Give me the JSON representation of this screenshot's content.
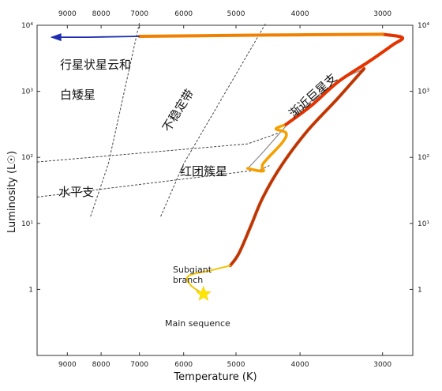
{
  "chart_data": {
    "type": "line",
    "title": "",
    "xlabel": "Temperature (K)",
    "ylabel": "Luminosity (L☉)",
    "x_scale": "reversed-log",
    "y_scale": "log",
    "xlim": [
      10000,
      2700
    ],
    "ylim": [
      0.1,
      10000
    ],
    "x_ticks": [
      9000,
      8000,
      7000,
      6000,
      5000,
      4000,
      3000
    ],
    "y_ticks": [
      {
        "value": 1,
        "label": "1"
      },
      {
        "value": 10,
        "label": "10¹"
      },
      {
        "value": 100,
        "label": "10²"
      },
      {
        "value": 1000,
        "label": "10³"
      },
      {
        "value": 10000,
        "label": "10⁴"
      }
    ],
    "annotations": [
      {
        "text": "行星状星云和",
        "kind": "zh"
      },
      {
        "text": "白矮星",
        "kind": "zh"
      },
      {
        "text": "不稳定带",
        "kind": "zh",
        "rotated": true
      },
      {
        "text": "渐近巨星支",
        "kind": "zh",
        "rotated": true
      },
      {
        "text": "红团簇星",
        "kind": "zh"
      },
      {
        "text": "水平支",
        "kind": "zh"
      },
      {
        "text": "Subgiant",
        "kind": "en"
      },
      {
        "text": "branch",
        "kind": "en"
      },
      {
        "text": "Main sequence",
        "kind": "en"
      }
    ],
    "main_sequence_point": {
      "T": 5600,
      "L": 0.85
    },
    "track_colors": {
      "subgiant": "#f2c200",
      "rgb": "#e33300",
      "agb": "#f08000",
      "post_agb": "#1d2fb0",
      "grey": "#888888",
      "star": "#ffe600"
    },
    "track_segments": [
      {
        "name": "subgiant",
        "points": [
          [
            5600,
            0.85
          ],
          [
            5850,
            1.15
          ],
          [
            5900,
            1.6
          ],
          [
            5450,
            1.95
          ],
          [
            5100,
            2.3
          ]
        ]
      },
      {
        "name": "red-giant-branch",
        "points": [
          [
            5100,
            2.3
          ],
          [
            4950,
            3.5
          ],
          [
            4750,
            9
          ],
          [
            4550,
            25
          ],
          [
            4250,
            80
          ],
          [
            3900,
            250
          ],
          [
            3500,
            800
          ],
          [
            3200,
            2200
          ]
        ]
      },
      {
        "name": "helium-flash",
        "points": [
          [
            3200,
            2200
          ],
          [
            3550,
            1300
          ],
          [
            4000,
            500
          ],
          [
            4550,
            120
          ],
          [
            4800,
            68
          ]
        ]
      },
      {
        "name": "red-clump",
        "points": [
          [
            4800,
            68
          ],
          [
            4550,
            62
          ],
          [
            4550,
            80
          ],
          [
            4250,
            170
          ],
          [
            4200,
            235
          ],
          [
            4350,
            270
          ],
          [
            4200,
            315
          ]
        ]
      },
      {
        "name": "asymptotic-giant-branch",
        "points": [
          [
            4200,
            315
          ],
          [
            3850,
            600
          ],
          [
            3500,
            1400
          ],
          [
            3150,
            2800
          ],
          [
            2900,
            5000
          ],
          [
            2800,
            6500
          ],
          [
            3000,
            7300
          ]
        ]
      },
      {
        "name": "post-agb",
        "points": [
          [
            3000,
            7300
          ],
          [
            4500,
            7100
          ],
          [
            7000,
            6800
          ]
        ]
      },
      {
        "name": "to-white-dwarf",
        "points": [
          [
            7000,
            6800
          ],
          [
            8400,
            6600
          ],
          [
            9500,
            6600
          ]
        ]
      }
    ],
    "dashed_lines": [
      {
        "name": "instability-strip-left",
        "points": [
          [
            8300,
            12.7
          ],
          [
            7800,
            80
          ],
          [
            7000,
            11000
          ]
        ]
      },
      {
        "name": "instability-strip-right",
        "points": [
          [
            6500,
            12.7
          ],
          [
            6000,
            80
          ],
          [
            4500,
            11000
          ]
        ]
      },
      {
        "name": "horizontal-branch-upper",
        "points": [
          [
            10000,
            85
          ],
          [
            4800,
            160
          ],
          [
            4300,
            235
          ]
        ]
      },
      {
        "name": "horizontal-branch-lower",
        "points": [
          [
            10000,
            25
          ],
          [
            4600,
            65
          ],
          [
            4450,
            75
          ]
        ]
      }
    ]
  }
}
